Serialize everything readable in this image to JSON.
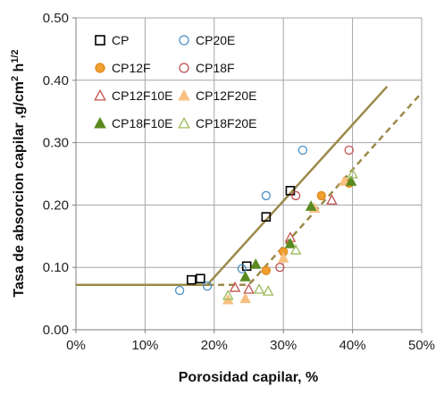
{
  "chart_data": {
    "type": "scatter",
    "xlabel": "Porosidad capilar, %",
    "ylabel_main": "Tasa de absorcion capilar ,g/cm",
    "ylabel_sup1": "2",
    "ylabel_mid": " h",
    "ylabel_sup2": "1/2",
    "xlim": [
      0,
      0.5
    ],
    "ylim": [
      0,
      0.5
    ],
    "x_ticks": [
      0,
      0.1,
      0.2,
      0.3,
      0.4,
      0.5
    ],
    "x_tick_labels": [
      "0%",
      "10%",
      "20%",
      "30%",
      "40%",
      "50%"
    ],
    "y_ticks": [
      0,
      0.1,
      0.2,
      0.3,
      0.4,
      0.5
    ],
    "y_tick_labels": [
      "0.00",
      "0.10",
      "0.20",
      "0.30",
      "0.40",
      "0.50"
    ],
    "grid": true,
    "legend_position": "top-left",
    "colors": {
      "black": "#000000",
      "blue": "#4a90c8",
      "orange": "#f0a030",
      "red": "#c0504d",
      "green": "#5a8a20",
      "light_green": "#9bbb59",
      "light_orange": "#f8c080",
      "trend": "#9c8a4a"
    },
    "series": [
      {
        "name": "CP",
        "marker": "square",
        "stroke": "#000000",
        "fill": "none",
        "points": [
          [
            0.167,
            0.08
          ],
          [
            0.18,
            0.082
          ],
          [
            0.247,
            0.102
          ],
          [
            0.275,
            0.181
          ],
          [
            0.31,
            0.223
          ]
        ]
      },
      {
        "name": "CP20E",
        "marker": "circle",
        "stroke": "#4a90c8",
        "fill": "none",
        "points": [
          [
            0.15,
            0.063
          ],
          [
            0.19,
            0.07
          ],
          [
            0.24,
            0.098
          ],
          [
            0.275,
            0.215
          ],
          [
            0.328,
            0.288
          ]
        ]
      },
      {
        "name": "CP12F",
        "marker": "circle-filled",
        "stroke": "#f0a030",
        "fill": "#f0a030",
        "points": [
          [
            0.275,
            0.095
          ],
          [
            0.3,
            0.125
          ],
          [
            0.355,
            0.215
          ],
          [
            0.395,
            0.235
          ]
        ]
      },
      {
        "name": "CP18F",
        "marker": "circle",
        "stroke": "#c0504d",
        "fill": "none",
        "points": [
          [
            0.295,
            0.1
          ],
          [
            0.318,
            0.215
          ],
          [
            0.395,
            0.288
          ]
        ]
      },
      {
        "name": "CP12F10E",
        "marker": "triangle",
        "stroke": "#c0504d",
        "fill": "none",
        "points": [
          [
            0.23,
            0.068
          ],
          [
            0.25,
            0.065
          ],
          [
            0.31,
            0.148
          ],
          [
            0.37,
            0.208
          ]
        ]
      },
      {
        "name": "CP12F20E",
        "marker": "triangle-filled",
        "stroke": "#f8c080",
        "fill": "#f8c080",
        "points": [
          [
            0.22,
            0.048
          ],
          [
            0.245,
            0.05
          ],
          [
            0.3,
            0.115
          ],
          [
            0.345,
            0.195
          ],
          [
            0.388,
            0.238
          ]
        ]
      },
      {
        "name": "CP18F10E",
        "marker": "triangle-filled",
        "stroke": "#5a8a20",
        "fill": "#5a8a20",
        "points": [
          [
            0.245,
            0.085
          ],
          [
            0.26,
            0.105
          ],
          [
            0.31,
            0.138
          ],
          [
            0.34,
            0.198
          ],
          [
            0.398,
            0.238
          ]
        ]
      },
      {
        "name": "CP18F20E",
        "marker": "triangle",
        "stroke": "#9bbb59",
        "fill": "none",
        "points": [
          [
            0.22,
            0.055
          ],
          [
            0.265,
            0.065
          ],
          [
            0.278,
            0.062
          ],
          [
            0.318,
            0.128
          ],
          [
            0.4,
            0.25
          ]
        ]
      }
    ],
    "trend_lines": [
      {
        "style": "solid",
        "points": [
          [
            0,
            0.072
          ],
          [
            0.19,
            0.072
          ],
          [
            0.45,
            0.39
          ]
        ]
      },
      {
        "style": "dashed",
        "points": [
          [
            0.19,
            0.072
          ],
          [
            0.25,
            0.072
          ],
          [
            0.5,
            0.38
          ]
        ]
      }
    ]
  }
}
